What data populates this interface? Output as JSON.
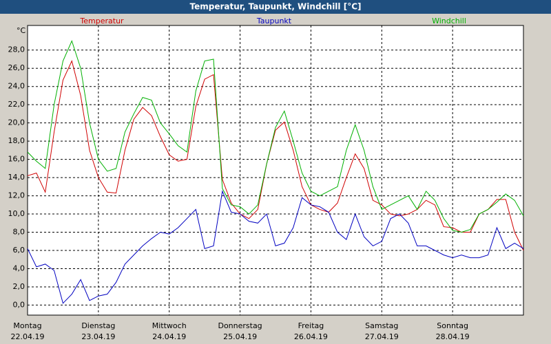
{
  "chart_data": {
    "type": "line",
    "title": "Temperatur, Taupunkt, Windchill [°C]",
    "y_unit": "°C",
    "x_labels": [
      {
        "day": "Montag",
        "date": "22.04.19"
      },
      {
        "day": "Dienstag",
        "date": "23.04.19"
      },
      {
        "day": "Mittwoch",
        "date": "24.04.19"
      },
      {
        "day": "Donnerstag",
        "date": "25.04.19"
      },
      {
        "day": "Freitag",
        "date": "26.04.19"
      },
      {
        "day": "Samstag",
        "date": "27.04.19"
      },
      {
        "day": "Sonntag",
        "date": "28.04.19"
      }
    ],
    "ylim": [
      -1.1,
      30.7
    ],
    "yticks": [
      {
        "value": 0,
        "label": "0,0"
      },
      {
        "value": 2,
        "label": "2,0"
      },
      {
        "value": 4,
        "label": "4,0"
      },
      {
        "value": 6,
        "label": "6,0"
      },
      {
        "value": 8,
        "label": "8,0"
      },
      {
        "value": 10,
        "label": "10,0"
      },
      {
        "value": 12,
        "label": "12,0"
      },
      {
        "value": 14,
        "label": "14,0"
      },
      {
        "value": 16,
        "label": "16,0"
      },
      {
        "value": 18,
        "label": "18,0"
      },
      {
        "value": 20,
        "label": "20,0"
      },
      {
        "value": 22,
        "label": "22,0"
      },
      {
        "value": 24,
        "label": "24,0"
      },
      {
        "value": 26,
        "label": "26,0"
      },
      {
        "value": 28,
        "label": "28,0"
      }
    ],
    "grid": true,
    "series": [
      {
        "name": "Temperatur",
        "color": "#d00000",
        "values": [
          14.2,
          14.5,
          12.4,
          19,
          24.7,
          26.8,
          23,
          17,
          14,
          12.4,
          12.3,
          17,
          20.4,
          21.7,
          20.8,
          18.5,
          16.5,
          15.8,
          16,
          21.8,
          24.8,
          25.3,
          13.8,
          11.2,
          10,
          9.5,
          10.5,
          15.5,
          19.2,
          20.1,
          17,
          13,
          11,
          10.5,
          10.2,
          11.2,
          14,
          16.6,
          15,
          11.5,
          11,
          10,
          9.8,
          10,
          10.5,
          11.5,
          11,
          8.6,
          8.5,
          8,
          8,
          10,
          10.5,
          11.6,
          11.6,
          8,
          6
        ]
      },
      {
        "name": "Taupunkt",
        "color": "#0000c0",
        "values": [
          6.2,
          4.2,
          4.5,
          3.8,
          0.2,
          1.2,
          2.8,
          0.5,
          1,
          1.2,
          2.5,
          4.5,
          5.5,
          6.5,
          7.3,
          8,
          7.8,
          8.5,
          9.5,
          10.5,
          6.2,
          6.5,
          12.5,
          10.2,
          10,
          9.2,
          9,
          10,
          6.5,
          6.8,
          8.5,
          11.8,
          11,
          10.8,
          10.2,
          8,
          7.2,
          10,
          7.5,
          6.5,
          7,
          9.5,
          10,
          9,
          6.5,
          6.5,
          6,
          5.5,
          5.2,
          5.5,
          5.2,
          5.2,
          5.5,
          8.5,
          6.2,
          6.8,
          6.2
        ]
      },
      {
        "name": "Windchill",
        "color": "#00b000",
        "values": [
          16.8,
          15.8,
          15,
          22,
          26.8,
          29,
          26,
          20,
          16,
          14.7,
          15,
          19,
          21,
          22.8,
          22.5,
          20,
          18.8,
          17.5,
          16.8,
          23.5,
          26.8,
          27,
          12.8,
          11,
          10.8,
          10,
          11,
          15.5,
          19.5,
          21.3,
          18,
          14.5,
          12.5,
          12,
          12.5,
          13,
          17,
          19.8,
          17,
          13,
          10.5,
          11,
          11.5,
          12,
          10.5,
          12.5,
          11.5,
          9.5,
          8.2,
          8,
          8.3,
          10,
          10.5,
          11.3,
          12.2,
          11.5,
          9.8
        ]
      }
    ]
  }
}
